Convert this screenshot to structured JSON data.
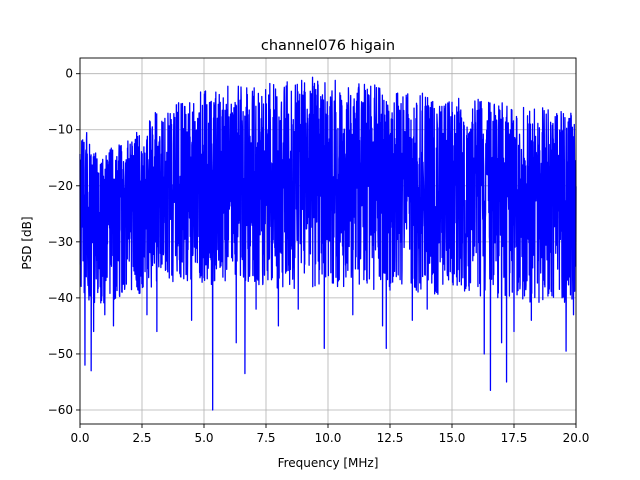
{
  "chart_data": {
    "type": "line",
    "title": "channel076 higain",
    "xlabel": "Frequency [MHz]",
    "ylabel": "PSD [dB]",
    "xlim": [
      0,
      20
    ],
    "ylim": [
      -62.5,
      2.8
    ],
    "xticks": [
      0,
      2.5,
      5,
      7.5,
      10,
      12.5,
      15,
      17.5,
      20
    ],
    "xtick_labels": [
      "0.0",
      "2.5",
      "5.0",
      "7.5",
      "10.0",
      "12.5",
      "15.0",
      "17.5",
      "20.0"
    ],
    "yticks": [
      0,
      -10,
      -20,
      -30,
      -40,
      -50,
      -60
    ],
    "ytick_labels": [
      "0",
      "−10",
      "−20",
      "−30",
      "−40",
      "−50",
      "−60"
    ],
    "grid": true,
    "colors": {
      "series": "#0000ff",
      "grid": "#b0b0b0"
    },
    "series": [
      {
        "x": [
          0,
          0.25,
          0.5,
          0.75,
          1.0,
          1.5,
          2.0,
          2.5,
          3.0,
          4.0,
          5.0,
          6.0,
          7.0,
          8.0,
          9.0,
          9.5,
          10.0,
          11.0,
          12.0,
          13.0,
          14.0,
          15.0,
          16.0,
          17.0,
          18.0,
          19.0,
          20.0
        ],
        "upper": [
          -12,
          -10,
          -13,
          -12,
          -14,
          -12,
          -11,
          -10,
          -7,
          -5,
          -3,
          -2,
          -1.5,
          -1.5,
          -1,
          -0.5,
          -1,
          -1.5,
          -2,
          -3,
          -3.5,
          -4,
          -4.5,
          -5,
          -5.5,
          -6,
          -7
        ],
        "lower": [
          -42,
          -40,
          -41,
          -42,
          -41,
          -40,
          -40,
          -39,
          -38,
          -37,
          -38,
          -37,
          -38,
          -39,
          -38,
          -38,
          -38,
          -38,
          -39,
          -39,
          -39,
          -40,
          -40,
          -41,
          -41,
          -41,
          -42
        ],
        "dips": [
          [
            0.2,
            -52
          ],
          [
            0.45,
            -53
          ],
          [
            0.55,
            -46
          ],
          [
            1.0,
            -43
          ],
          [
            1.35,
            -45
          ],
          [
            2.7,
            -43
          ],
          [
            3.1,
            -46
          ],
          [
            4.5,
            -44
          ],
          [
            5.35,
            -60
          ],
          [
            6.3,
            -48
          ],
          [
            6.65,
            -53.5
          ],
          [
            7.1,
            -42
          ],
          [
            8.0,
            -45
          ],
          [
            8.8,
            -42
          ],
          [
            9.85,
            -49
          ],
          [
            11.0,
            -43
          ],
          [
            12.2,
            -45
          ],
          [
            12.35,
            -49
          ],
          [
            13.4,
            -44
          ],
          [
            14.0,
            -42
          ],
          [
            16.3,
            -50
          ],
          [
            16.55,
            -56.5
          ],
          [
            17.0,
            -48
          ],
          [
            17.2,
            -55
          ],
          [
            17.5,
            -46
          ],
          [
            18.2,
            -44
          ],
          [
            19.6,
            -49.5
          ],
          [
            19.9,
            -43
          ]
        ]
      }
    ]
  }
}
